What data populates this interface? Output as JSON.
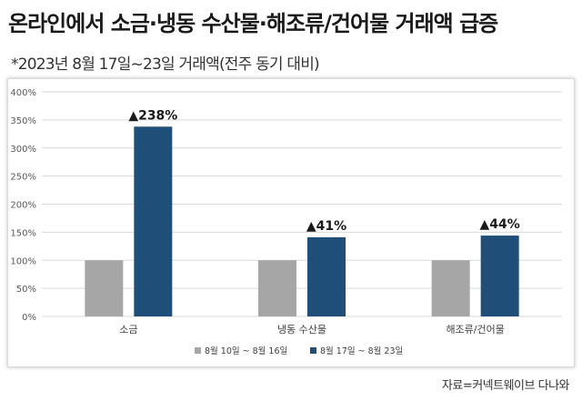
{
  "header": {
    "title": "온라인에서 소금·냉동 수산물·해조류/건어물 거래액 급증",
    "subtitle": "*2023년 8월 17일~23일 거래액(전주 동기 대비)"
  },
  "footer": {
    "source": "자료=커넥트웨이브 다나와"
  },
  "chart_data": {
    "type": "bar",
    "categories": [
      "소금",
      "냉동 수산물",
      "해조류/건어물"
    ],
    "series": [
      {
        "name": "8월 10일 ~ 8월 16일",
        "values": [
          100,
          100,
          100
        ],
        "color": "#a6a6a6"
      },
      {
        "name": "8월 17일 ~ 8월 23일",
        "values": [
          338,
          141,
          144
        ],
        "color": "#1f4e79"
      }
    ],
    "annotations": [
      "▲238%",
      "▲41%",
      "▲44%"
    ],
    "yticks": [
      "0%",
      "50%",
      "100%",
      "150%",
      "200%",
      "250%",
      "300%",
      "350%",
      "400%"
    ],
    "ylim": [
      0,
      400
    ],
    "grid": true,
    "legend_position": "bottom"
  }
}
